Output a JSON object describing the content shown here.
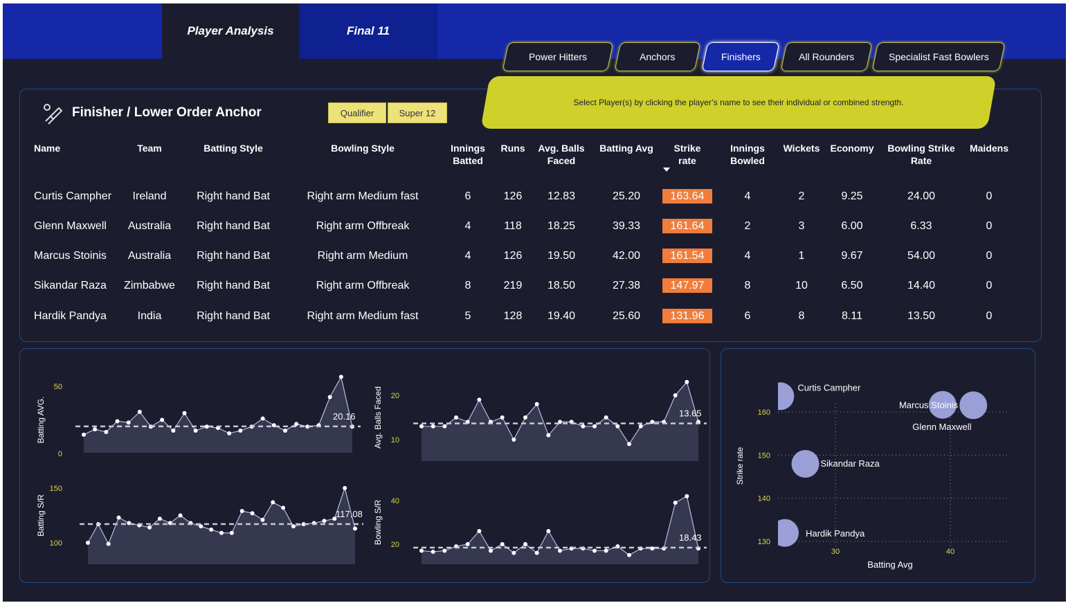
{
  "nav": {
    "tabs": [
      {
        "label": "Player Analysis",
        "active": true
      },
      {
        "label": "Final 11",
        "active": false
      }
    ]
  },
  "categories": [
    "Power Hitters",
    "Anchors",
    "Finishers",
    "All Rounders",
    "Specialist Fast Bowlers"
  ],
  "active_category": "Finishers",
  "instruction": "Select Player(s) by clicking the player’s name to see their individual or combined strength.",
  "table": {
    "title": "Finisher / Lower Order Anchor",
    "filters": [
      {
        "label": "Qualifier"
      },
      {
        "label": "Super 12"
      }
    ],
    "columns": [
      "Name",
      "Team",
      "Batting Style",
      "Bowling Style",
      "Innings Batted",
      "Runs",
      "Avg. Balls Faced",
      "Batting Avg",
      "Strike rate",
      "Innings Bowled",
      "Wickets",
      "Economy",
      "Bowling Strike Rate",
      "Maidens"
    ],
    "sorted_column": "Strike rate",
    "rows": [
      [
        "Curtis Campher",
        "Ireland",
        "Right hand Bat",
        "Right arm Medium fast",
        "6",
        "126",
        "12.83",
        "25.20",
        "163.64",
        "4",
        "2",
        "9.25",
        "24.00",
        "0"
      ],
      [
        "Glenn Maxwell",
        "Australia",
        "Right hand Bat",
        "Right arm Offbreak",
        "4",
        "118",
        "18.25",
        "39.33",
        "161.64",
        "2",
        "3",
        "6.00",
        "6.33",
        "0"
      ],
      [
        "Marcus Stoinis",
        "Australia",
        "Right hand Bat",
        "Right arm Medium",
        "4",
        "126",
        "19.50",
        "42.00",
        "161.54",
        "4",
        "1",
        "9.67",
        "54.00",
        "0"
      ],
      [
        "Sikandar Raza",
        "Zimbabwe",
        "Right hand Bat",
        "Right arm Offbreak",
        "8",
        "219",
        "18.50",
        "27.38",
        "147.97",
        "8",
        "10",
        "6.50",
        "14.40",
        "0"
      ],
      [
        "Hardik Pandya",
        "India",
        "Right hand Bat",
        "Right arm Medium fast",
        "5",
        "128",
        "19.40",
        "25.60",
        "131.96",
        "6",
        "8",
        "8.11",
        "13.50",
        "0"
      ]
    ],
    "highlight_color": "#f07d3b"
  },
  "chart_data": [
    {
      "type": "area",
      "ylabel": "Batting AVG.",
      "yticks": [
        "50",
        "0"
      ],
      "ylim": [
        0,
        60
      ],
      "avg_label": "20.16",
      "avg": 20.16,
      "values": [
        14,
        18,
        16,
        24,
        23,
        31,
        20,
        25,
        17,
        30,
        17,
        20,
        19,
        15,
        17,
        20,
        26,
        21,
        17,
        22,
        20,
        21,
        42,
        57,
        20
      ]
    },
    {
      "type": "area",
      "ylabel": "Avg. Balls Faced",
      "yticks": [
        "20",
        "10"
      ],
      "ylim": [
        5,
        25
      ],
      "avg_label": "13.65",
      "avg": 13.65,
      "values": [
        13,
        13,
        13,
        15,
        14,
        19,
        14,
        15,
        10,
        15,
        18,
        11,
        14,
        14,
        13,
        13,
        15,
        13,
        9,
        13,
        14,
        14,
        20,
        23,
        14
      ]
    },
    {
      "type": "area",
      "ylabel": "Batting S/R",
      "yticks": [
        "150",
        "100"
      ],
      "ylim": [
        85,
        160
      ],
      "avg_label": "117.08",
      "avg": 117.08,
      "values": [
        100,
        117,
        99,
        123,
        118,
        116,
        114,
        122,
        118,
        125,
        118,
        115,
        112,
        109,
        109,
        129,
        127,
        121,
        137,
        132,
        115,
        117,
        118,
        120,
        122,
        150,
        113
      ]
    },
    {
      "type": "area",
      "ylabel": "Bowling S/R",
      "yticks": [
        "40",
        "20"
      ],
      "ylim": [
        15,
        45
      ],
      "avg_label": "18.43",
      "avg": 18.43,
      "values": [
        17,
        16.5,
        17,
        19,
        20,
        26,
        17,
        20,
        16,
        20,
        16,
        26,
        17,
        18,
        18,
        17,
        17,
        19,
        15,
        18,
        18,
        18,
        39,
        42,
        18
      ]
    },
    {
      "type": "scatter",
      "xlabel": "Batting Avg",
      "ylabel": "Strike rate",
      "xticks": [
        "30",
        "40"
      ],
      "yticks": [
        "160",
        "150",
        "140",
        "130"
      ],
      "xlim": [
        25.3,
        46
      ],
      "ylim": [
        127.5,
        168
      ],
      "points": [
        {
          "name": "Curtis Campher",
          "x": 25.2,
          "y": 163.64
        },
        {
          "name": "Glenn Maxwell",
          "x": 39.33,
          "y": 161.64
        },
        {
          "name": "Marcus Stoinis",
          "x": 42.0,
          "y": 161.54
        },
        {
          "name": "Sikandar Raza",
          "x": 27.38,
          "y": 147.97
        },
        {
          "name": "Hardik Pandya",
          "x": 25.6,
          "y": 131.96
        }
      ],
      "bubble_color": "#9a9fd6"
    }
  ]
}
